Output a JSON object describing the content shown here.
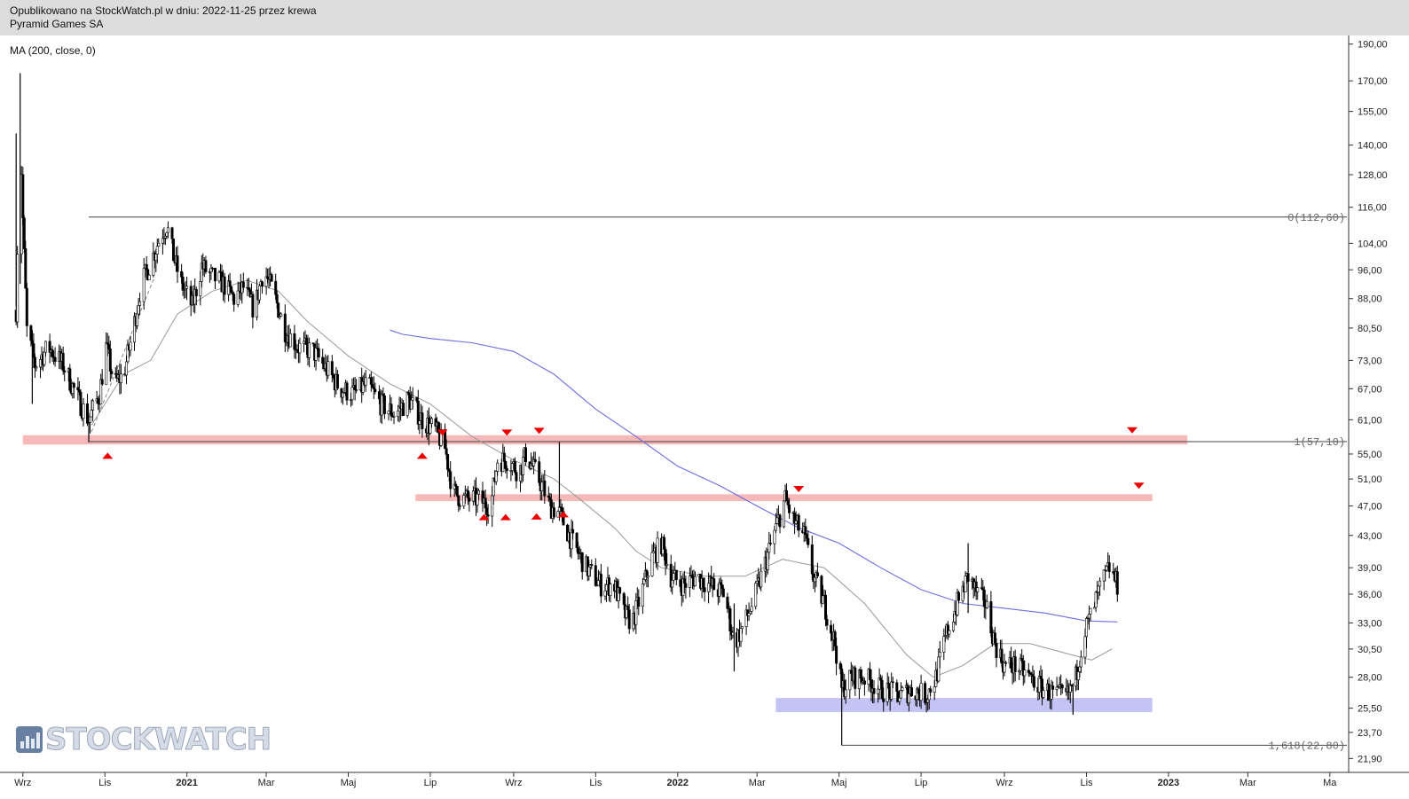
{
  "header": {
    "published": "Opublikowano na StockWatch.pl w dniu: 2022-11-25 przez krewa",
    "instrument": "Pyramid Games SA"
  },
  "indicator_label": "MA (200, close, 0)",
  "watermark": "STOCKWATCH",
  "colors": {
    "candles": "#000000",
    "ma_short": "#999999",
    "ma200": "#6c6ce0",
    "resistance_zone": "#f6b8b8",
    "support_zone": "#c4c4f4",
    "marker": "#ee0000",
    "header_bg": "#dcdcdc"
  },
  "chart_data": {
    "type": "candlestick",
    "y_axis": {
      "scale": "log",
      "range": [
        21.0,
        195.0
      ],
      "ticks": [
        190,
        170,
        155,
        140,
        128,
        116,
        104,
        96,
        88,
        80.5,
        73,
        67,
        61,
        55,
        51,
        47,
        43,
        39,
        36,
        33,
        30.5,
        28,
        25.5,
        23.7,
        21.9
      ],
      "tick_labels": [
        "190,00",
        "170,00",
        "155,00",
        "140,00",
        "128,00",
        "116,00",
        "104,00",
        "96,00",
        "88,00",
        "80,50",
        "73,00",
        "67,00",
        "61,00",
        "55,00",
        "51,00",
        "47,00",
        "43,00",
        "39,00",
        "36,00",
        "33,00",
        "30,50",
        "28,00",
        "25,50",
        "23,70",
        "21,90"
      ]
    },
    "x_axis": {
      "range": [
        "2020-08-15",
        "2023-05-15"
      ],
      "ticks": [
        {
          "date": "2020-09-01",
          "label": "Wrz"
        },
        {
          "date": "2020-11-01",
          "label": "Lis"
        },
        {
          "date": "2021-01-01",
          "label": "2021"
        },
        {
          "date": "2021-03-01",
          "label": "Mar"
        },
        {
          "date": "2021-05-01",
          "label": "Maj"
        },
        {
          "date": "2021-07-01",
          "label": "Lip"
        },
        {
          "date": "2021-09-01",
          "label": "Wrz"
        },
        {
          "date": "2021-11-01",
          "label": "Lis"
        },
        {
          "date": "2022-01-01",
          "label": "2022"
        },
        {
          "date": "2022-03-01",
          "label": "Mar"
        },
        {
          "date": "2022-05-01",
          "label": "Maj"
        },
        {
          "date": "2022-07-01",
          "label": "Lip"
        },
        {
          "date": "2022-09-01",
          "label": "Wrz"
        },
        {
          "date": "2022-11-01",
          "label": "Lis"
        },
        {
          "date": "2023-01-01",
          "label": "2023"
        },
        {
          "date": "2023-03-01",
          "label": "Mar"
        },
        {
          "date": "2023-05-01",
          "label": "Ma"
        }
      ]
    },
    "price_path": [
      [
        "2020-08-27",
        85
      ],
      [
        "2020-08-30",
        150
      ],
      [
        "2020-09-01",
        112
      ],
      [
        "2020-09-04",
        80
      ],
      [
        "2020-09-10",
        72
      ],
      [
        "2020-09-20",
        76
      ],
      [
        "2020-10-01",
        72
      ],
      [
        "2020-10-12",
        65
      ],
      [
        "2020-10-20",
        61
      ],
      [
        "2020-10-28",
        66
      ],
      [
        "2020-11-02",
        76
      ],
      [
        "2020-11-08",
        68
      ],
      [
        "2020-11-15",
        70
      ],
      [
        "2020-11-22",
        80
      ],
      [
        "2020-11-28",
        92
      ],
      [
        "2020-12-05",
        98
      ],
      [
        "2020-12-12",
        106
      ],
      [
        "2020-12-17",
        110
      ],
      [
        "2020-12-22",
        100
      ],
      [
        "2020-12-28",
        92
      ],
      [
        "2021-01-05",
        86
      ],
      [
        "2021-01-12",
        97
      ],
      [
        "2021-01-20",
        94
      ],
      [
        "2021-01-28",
        92
      ],
      [
        "2021-02-05",
        88
      ],
      [
        "2021-02-12",
        91
      ],
      [
        "2021-02-20",
        85
      ],
      [
        "2021-02-27",
        96
      ],
      [
        "2021-03-06",
        90
      ],
      [
        "2021-03-15",
        80
      ],
      [
        "2021-03-25",
        76
      ],
      [
        "2021-04-05",
        75
      ],
      [
        "2021-04-15",
        71
      ],
      [
        "2021-04-25",
        67
      ],
      [
        "2021-05-05",
        66
      ],
      [
        "2021-05-15",
        68
      ],
      [
        "2021-05-25",
        64
      ],
      [
        "2021-06-05",
        62
      ],
      [
        "2021-06-15",
        65
      ],
      [
        "2021-06-25",
        61
      ],
      [
        "2021-07-05",
        59
      ],
      [
        "2021-07-12",
        56
      ],
      [
        "2021-07-18",
        49
      ],
      [
        "2021-07-25",
        48
      ],
      [
        "2021-08-05",
        48
      ],
      [
        "2021-08-15",
        47
      ],
      [
        "2021-08-20",
        54
      ],
      [
        "2021-08-28",
        54
      ],
      [
        "2021-09-05",
        52
      ],
      [
        "2021-09-10",
        55
      ],
      [
        "2021-09-15",
        53
      ],
      [
        "2021-09-22",
        50
      ],
      [
        "2021-09-28",
        47
      ],
      [
        "2021-10-05",
        46
      ],
      [
        "2021-10-15",
        42
      ],
      [
        "2021-10-25",
        39
      ],
      [
        "2021-11-05",
        37
      ],
      [
        "2021-11-15",
        37
      ],
      [
        "2021-11-22",
        34
      ],
      [
        "2021-11-28",
        33
      ],
      [
        "2021-12-05",
        36
      ],
      [
        "2021-12-12",
        40
      ],
      [
        "2021-12-20",
        42
      ],
      [
        "2021-12-27",
        38
      ],
      [
        "2022-01-05",
        37
      ],
      [
        "2022-01-15",
        38
      ],
      [
        "2022-01-25",
        37
      ],
      [
        "2022-02-05",
        36
      ],
      [
        "2022-02-12",
        31
      ],
      [
        "2022-02-20",
        33
      ],
      [
        "2022-02-28",
        36
      ],
      [
        "2022-03-08",
        40
      ],
      [
        "2022-03-15",
        44
      ],
      [
        "2022-03-22",
        48
      ],
      [
        "2022-03-28",
        45
      ],
      [
        "2022-04-05",
        43
      ],
      [
        "2022-04-12",
        38
      ],
      [
        "2022-04-20",
        35
      ],
      [
        "2022-04-28",
        31
      ],
      [
        "2022-05-03",
        27
      ],
      [
        "2022-05-10",
        28
      ],
      [
        "2022-05-20",
        28
      ],
      [
        "2022-06-01",
        27
      ],
      [
        "2022-06-15",
        26.5
      ],
      [
        "2022-06-25",
        27
      ],
      [
        "2022-07-05",
        26.5
      ],
      [
        "2022-07-12",
        28
      ],
      [
        "2022-07-20",
        32
      ],
      [
        "2022-07-28",
        35
      ],
      [
        "2022-08-05",
        38
      ],
      [
        "2022-08-12",
        36
      ],
      [
        "2022-08-18",
        35
      ],
      [
        "2022-08-25",
        31
      ],
      [
        "2022-09-01",
        29
      ],
      [
        "2022-09-10",
        29
      ],
      [
        "2022-09-20",
        28
      ],
      [
        "2022-09-30",
        27
      ],
      [
        "2022-10-10",
        26.5
      ],
      [
        "2022-10-18",
        26.5
      ],
      [
        "2022-10-24",
        28
      ],
      [
        "2022-10-30",
        32
      ],
      [
        "2022-11-05",
        34
      ],
      [
        "2022-11-12",
        37
      ],
      [
        "2022-11-18",
        39
      ],
      [
        "2022-11-24",
        37
      ]
    ],
    "ma_short": [
      [
        "2020-10-22",
        60
      ],
      [
        "2020-11-15",
        70
      ],
      [
        "2020-12-05",
        73
      ],
      [
        "2020-12-25",
        84
      ],
      [
        "2021-01-20",
        90
      ],
      [
        "2021-02-15",
        93
      ],
      [
        "2021-03-10",
        90
      ],
      [
        "2021-04-01",
        82
      ],
      [
        "2021-05-01",
        74
      ],
      [
        "2021-06-01",
        68
      ],
      [
        "2021-07-01",
        64
      ],
      [
        "2021-08-01",
        58
      ],
      [
        "2021-09-01",
        54
      ],
      [
        "2021-10-01",
        51
      ],
      [
        "2021-10-20",
        48
      ],
      [
        "2021-11-15",
        44
      ],
      [
        "2021-12-01",
        41
      ],
      [
        "2021-12-20",
        39
      ],
      [
        "2022-01-20",
        38
      ],
      [
        "2022-02-20",
        38
      ],
      [
        "2022-03-20",
        40
      ],
      [
        "2022-04-20",
        39
      ],
      [
        "2022-05-20",
        35
      ],
      [
        "2022-06-20",
        30
      ],
      [
        "2022-07-10",
        28
      ],
      [
        "2022-08-01",
        29
      ],
      [
        "2022-08-25",
        31
      ],
      [
        "2022-09-20",
        31
      ],
      [
        "2022-10-20",
        30
      ],
      [
        "2022-11-05",
        29.5
      ],
      [
        "2022-11-20",
        30.5
      ]
    ],
    "ma200": [
      [
        "2021-06-01",
        80
      ],
      [
        "2021-06-10",
        79
      ],
      [
        "2021-07-01",
        78
      ],
      [
        "2021-08-01",
        77
      ],
      [
        "2021-09-01",
        75
      ],
      [
        "2021-10-01",
        70
      ],
      [
        "2021-11-01",
        63
      ],
      [
        "2021-12-01",
        58
      ],
      [
        "2022-01-01",
        53
      ],
      [
        "2022-02-01",
        50
      ],
      [
        "2022-03-01",
        47
      ],
      [
        "2022-04-01",
        44
      ],
      [
        "2022-05-01",
        42
      ],
      [
        "2022-06-01",
        39
      ],
      [
        "2022-07-01",
        36.5
      ],
      [
        "2022-08-01",
        35
      ],
      [
        "2022-09-01",
        34.5
      ],
      [
        "2022-10-01",
        34
      ],
      [
        "2022-11-01",
        33.2
      ],
      [
        "2022-11-24",
        33.1
      ]
    ],
    "spikes": [
      {
        "date": "2020-08-30",
        "high": 174,
        "low": 92
      },
      {
        "date": "2020-08-27",
        "high": 145,
        "low": 86
      },
      {
        "date": "2020-09-08",
        "high": 80,
        "low": 64
      },
      {
        "date": "2020-10-20",
        "high": 62,
        "low": 57
      },
      {
        "date": "2021-10-05",
        "high": 57,
        "low": 47
      },
      {
        "date": "2022-02-12",
        "high": 35,
        "low": 28.5
      },
      {
        "date": "2022-05-03",
        "high": 29,
        "low": 22.8
      },
      {
        "date": "2022-08-05",
        "high": 42,
        "low": 34
      },
      {
        "date": "2022-10-22",
        "high": 27.5,
        "low": 25
      }
    ],
    "fibonacci": [
      {
        "label": "0(112,60)",
        "value": 112.6,
        "from": "2020-10-20"
      },
      {
        "label": "1(57,10)",
        "value": 57.1,
        "from": "2020-10-20"
      },
      {
        "label": "1,618(22,80)",
        "value": 22.8,
        "from": "2022-05-03"
      }
    ],
    "zones": [
      {
        "kind": "resistance",
        "value_low": 56.6,
        "value_high": 58.2,
        "from": "2020-09-01",
        "to": "2023-01-15"
      },
      {
        "kind": "resistance",
        "value_low": 47.7,
        "value_high": 48.7,
        "from": "2021-06-20",
        "to": "2022-12-20"
      },
      {
        "kind": "support",
        "value_low": 25.2,
        "value_high": 26.3,
        "from": "2022-03-15",
        "to": "2022-12-20"
      }
    ],
    "markers_down": [
      {
        "date": "2021-07-10",
        "value": 58.6
      },
      {
        "date": "2021-08-27",
        "value": 58.6
      },
      {
        "date": "2021-09-20",
        "value": 58.9
      },
      {
        "date": "2022-04-01",
        "value": 49.4
      },
      {
        "date": "2022-12-05",
        "value": 59.0
      },
      {
        "date": "2022-12-10",
        "value": 49.9
      }
    ],
    "markers_up": [
      {
        "date": "2020-11-03",
        "value": 54.8
      },
      {
        "date": "2021-06-25",
        "value": 54.8
      },
      {
        "date": "2021-08-10",
        "value": 45.5
      },
      {
        "date": "2021-08-26",
        "value": 45.5
      },
      {
        "date": "2021-09-18",
        "value": 45.6
      },
      {
        "date": "2021-10-08",
        "value": 45.9
      }
    ],
    "dashed_trend": {
      "from": [
        "2020-10-22",
        58.8
      ],
      "to": [
        "2020-12-08",
        94
      ]
    }
  }
}
